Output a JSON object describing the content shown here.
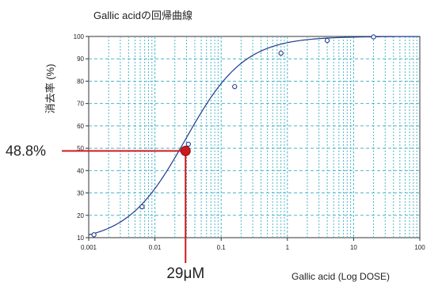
{
  "chart_data": {
    "type": "scatter",
    "title": "Gallic acidの回帰曲線",
    "xlabel": "Gallic acid (Log DOSE)",
    "ylabel": "消去率 (%)",
    "x_scale": "log",
    "xlim": [
      0.001,
      100
    ],
    "ylim": [
      10,
      100
    ],
    "grid": true,
    "x_ticks": [
      "0.001",
      "0.01",
      "0.1",
      "1",
      "10",
      "100"
    ],
    "y_ticks": [
      "10",
      "20",
      "30",
      "40",
      "50",
      "60",
      "70",
      "80",
      "90",
      "100"
    ],
    "series": [
      {
        "points": [
          {
            "x": 0.0012,
            "y": 11.3
          },
          {
            "x": 0.0064,
            "y": 23.8
          },
          {
            "x": 0.032,
            "y": 51.8
          },
          {
            "x": 0.16,
            "y": 77.6
          },
          {
            "x": 0.8,
            "y": 92.5
          },
          {
            "x": 4,
            "y": 98.2
          },
          {
            "x": 20,
            "y": 99.8
          }
        ]
      }
    ],
    "fit_curve": {
      "bottom": 8,
      "top": 100,
      "ec50": 0.029,
      "hill": 0.98
    },
    "annotation": {
      "x": 0.029,
      "y": 48.8,
      "x_label": "29μM",
      "y_label": "48.8%"
    }
  },
  "colors": {
    "curve": "#1f3b8c",
    "marker": "#1f3b8c",
    "grid": "#4fb6c8",
    "annotation": "#d0181f",
    "axis": "#333333"
  }
}
